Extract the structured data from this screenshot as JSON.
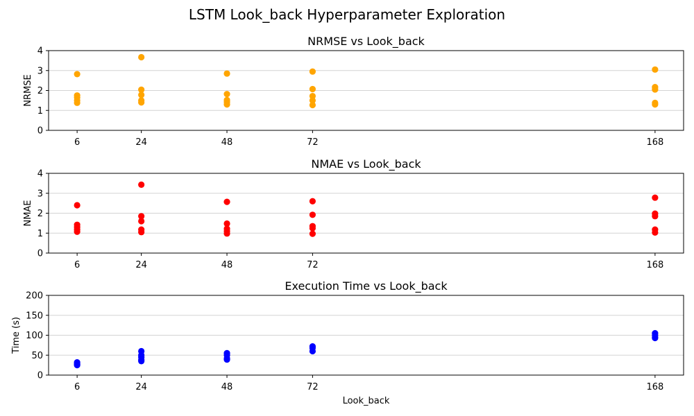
{
  "figure_title": "LSTM Look_back Hyperparameter Exploration",
  "chart_data": [
    {
      "type": "scatter",
      "title": "NRMSE vs Look_back",
      "xlabel": "",
      "ylabel": "NRMSE",
      "xticks": [
        6,
        24,
        48,
        72,
        168
      ],
      "yticks": [
        0,
        1,
        2,
        3,
        4
      ],
      "xlim": [
        -2,
        176
      ],
      "ylim": [
        0,
        4
      ],
      "color": "#ffa500",
      "grid": "y",
      "points": [
        [
          6,
          2.82
        ],
        [
          6,
          1.75
        ],
        [
          6,
          1.65
        ],
        [
          6,
          1.5
        ],
        [
          6,
          1.38
        ],
        [
          24,
          3.67
        ],
        [
          24,
          2.04
        ],
        [
          24,
          1.78
        ],
        [
          24,
          1.5
        ],
        [
          24,
          1.4
        ],
        [
          48,
          2.85
        ],
        [
          48,
          1.82
        ],
        [
          48,
          1.52
        ],
        [
          48,
          1.42
        ],
        [
          48,
          1.3
        ],
        [
          72,
          2.95
        ],
        [
          72,
          2.07
        ],
        [
          72,
          1.72
        ],
        [
          72,
          1.5
        ],
        [
          72,
          1.27
        ],
        [
          168,
          3.05
        ],
        [
          168,
          2.17
        ],
        [
          168,
          2.05
        ],
        [
          168,
          1.38
        ],
        [
          168,
          1.3
        ]
      ]
    },
    {
      "type": "scatter",
      "title": "NMAE vs Look_back",
      "xlabel": "",
      "ylabel": "NMAE",
      "xticks": [
        6,
        24,
        48,
        72,
        168
      ],
      "yticks": [
        0,
        1,
        2,
        3,
        4
      ],
      "xlim": [
        -2,
        176
      ],
      "ylim": [
        0,
        4
      ],
      "color": "#ff0000",
      "grid": "y",
      "points": [
        [
          6,
          2.4
        ],
        [
          6,
          1.42
        ],
        [
          6,
          1.3
        ],
        [
          6,
          1.18
        ],
        [
          6,
          1.07
        ],
        [
          24,
          3.43
        ],
        [
          24,
          1.85
        ],
        [
          24,
          1.6
        ],
        [
          24,
          1.18
        ],
        [
          24,
          1.05
        ],
        [
          48,
          2.57
        ],
        [
          48,
          1.48
        ],
        [
          48,
          1.22
        ],
        [
          48,
          1.1
        ],
        [
          48,
          0.98
        ],
        [
          72,
          2.6
        ],
        [
          72,
          1.92
        ],
        [
          72,
          1.35
        ],
        [
          72,
          1.25
        ],
        [
          72,
          0.97
        ],
        [
          168,
          2.78
        ],
        [
          168,
          1.98
        ],
        [
          168,
          1.85
        ],
        [
          168,
          1.18
        ],
        [
          168,
          1.03
        ]
      ]
    },
    {
      "type": "scatter",
      "title": "Execution Time vs Look_back",
      "xlabel": "Look_back",
      "ylabel": "Time (s)",
      "xticks": [
        6,
        24,
        48,
        72,
        168
      ],
      "yticks": [
        0,
        50,
        100,
        150,
        200
      ],
      "xlim": [
        -2,
        176
      ],
      "ylim": [
        0,
        200
      ],
      "color": "#0000ff",
      "grid": "y",
      "points": [
        [
          6,
          32
        ],
        [
          6,
          29
        ],
        [
          6,
          27
        ],
        [
          6,
          25
        ],
        [
          24,
          60
        ],
        [
          24,
          50
        ],
        [
          24,
          45
        ],
        [
          24,
          38
        ],
        [
          24,
          35
        ],
        [
          48,
          55
        ],
        [
          48,
          50
        ],
        [
          48,
          42
        ],
        [
          48,
          39
        ],
        [
          72,
          72
        ],
        [
          72,
          68
        ],
        [
          72,
          60
        ],
        [
          168,
          105
        ],
        [
          168,
          100
        ],
        [
          168,
          95
        ],
        [
          168,
          93
        ]
      ]
    }
  ]
}
